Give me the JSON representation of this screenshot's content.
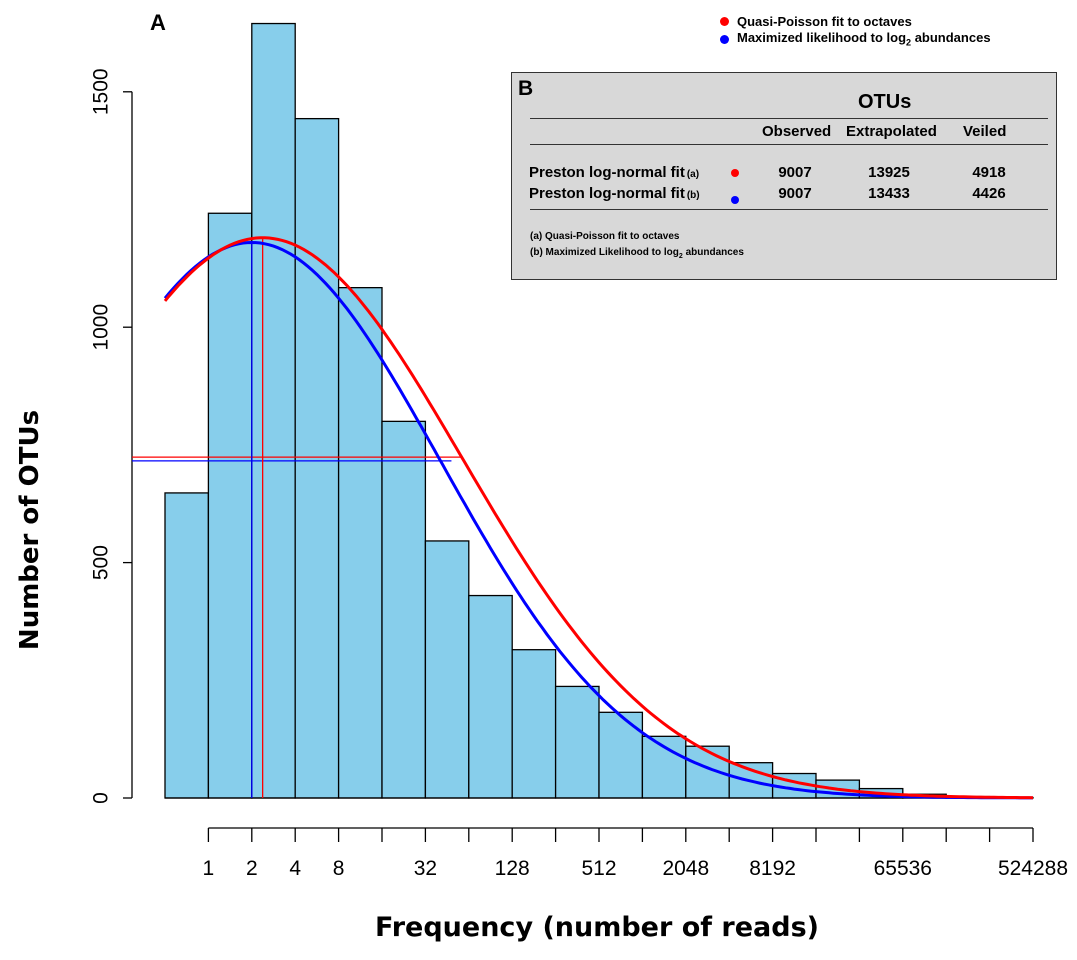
{
  "panel_a_label": "A",
  "y_axis_label": "Number of OTUs",
  "x_axis_label": "Frequency (number of reads)",
  "legend": [
    {
      "label": "Quasi-Poisson fit to octaves",
      "color": "#ff0000"
    },
    {
      "label_main": "Maximized likelihood to log",
      "label_sub": "2",
      "label_tail": " abundances",
      "color": "#0000ff"
    }
  ],
  "inset": {
    "panel_label": "B",
    "group_header": "OTUs",
    "columns": [
      "Observed",
      "Extrapolated",
      "Veiled"
    ],
    "rows": [
      {
        "label": "Preston log-normal fit",
        "tag": "(a)",
        "dot_color": "#ff0000",
        "values": [
          "9007",
          "13925",
          "4918"
        ]
      },
      {
        "label": "Preston log-normal fit",
        "tag": "(b)",
        "dot_color": "#0000ff",
        "values": [
          "9007",
          "13433",
          "4426"
        ]
      }
    ],
    "note_a": "(a) Quasi-Poisson fit to octaves",
    "note_b_main": "(b) Maximized Likelihood to log",
    "note_b_sub": "2",
    "note_b_tail": " abundances"
  },
  "chart_data": {
    "type": "bar",
    "subtype": "histogram-with-fitted-curves",
    "x_scale": "log2 octaves",
    "x_tick_labels": [
      "1",
      "2",
      "4",
      "8",
      "32",
      "128",
      "512",
      "2048",
      "8192",
      "65536",
      "524288"
    ],
    "x_tick_octaves": [
      0,
      1,
      2,
      3,
      5,
      7,
      9,
      11,
      13,
      16,
      19
    ],
    "bars_octave_start": [
      -1,
      0,
      1,
      2,
      3,
      4,
      5,
      6,
      7,
      8,
      9,
      10,
      11,
      12,
      13,
      14,
      15,
      16,
      17,
      18,
      19
    ],
    "values": [
      648,
      1242,
      1645,
      1443,
      1084,
      800,
      546,
      430,
      315,
      237,
      182,
      131,
      110,
      75,
      52,
      38,
      20,
      8,
      3,
      1,
      0
    ],
    "ylim": [
      0,
      1700
    ],
    "y_ticks": [
      0,
      500,
      1000,
      1500
    ],
    "bar_color": "#87ceeb",
    "series": [
      {
        "name": "Quasi-Poisson fit to octaves",
        "color": "#ff0000",
        "mode_octave": 1.25,
        "peak": 1190,
        "sd_octaves": 4.6,
        "mode_line_octave": 1.25
      },
      {
        "name": "Maximized likelihood to log2 abundances",
        "color": "#0000ff",
        "mode_octave": 1.0,
        "peak": 1180,
        "sd_octaves": 4.35,
        "mode_line_octave": 1.0
      }
    ],
    "half_height_lines": [
      {
        "color": "#ff0000",
        "y": 724,
        "x_end_octave": 5.85
      },
      {
        "color": "#0000ff",
        "y": 716,
        "x_end_octave": 5.6
      }
    ],
    "curve_x_range_octaves": [
      -1,
      19
    ]
  }
}
